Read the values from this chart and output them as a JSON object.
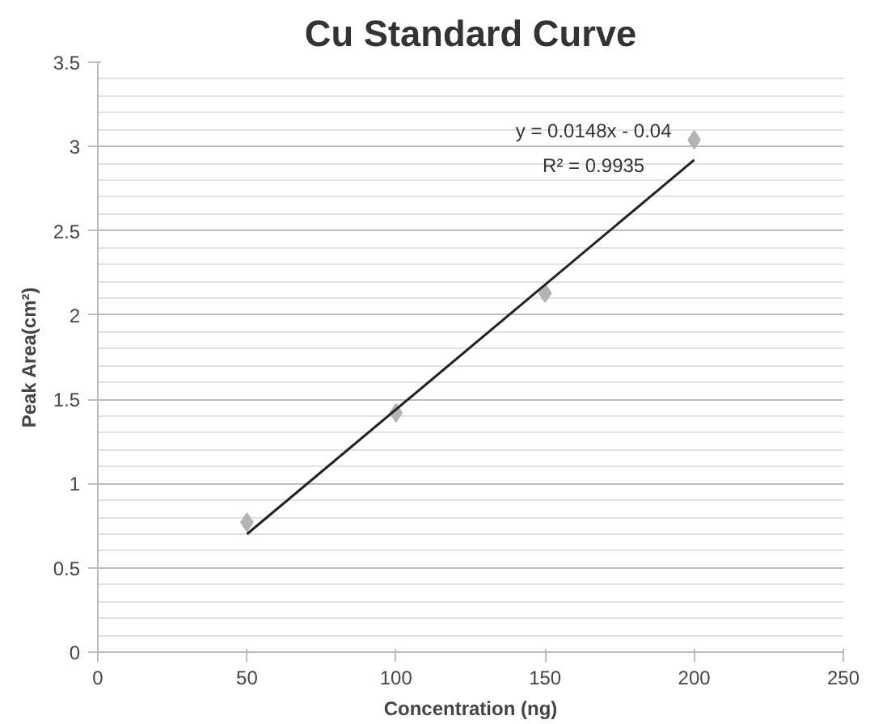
{
  "chart_data": {
    "type": "scatter",
    "title": "Cu Standard Curve",
    "xlabel": "Concentration (ng)",
    "ylabel": "Peak Area(cm²)",
    "x": [
      50,
      100,
      150,
      200
    ],
    "series": [
      {
        "color": "#b4b4b4",
        "marker": "diamond",
        "values": [
          0.77,
          1.42,
          2.13,
          3.04
        ]
      },
      {
        "type": "line",
        "color": "#222222",
        "marker": "none",
        "line_style": "solid",
        "x": [
          50,
          200
        ],
        "values": [
          0.7,
          2.92
        ]
      }
    ],
    "annotations": [
      "y = 0.0148x - 0.04",
      "R² = 0.9935"
    ],
    "xlim": [
      0,
      250
    ],
    "xticks": [
      0,
      50,
      100,
      150,
      200,
      250
    ],
    "ylim": [
      0,
      3.5
    ],
    "yticks": [
      0,
      0.5,
      1,
      1.5,
      2,
      2.5,
      3,
      3.5
    ],
    "grid": "y"
  }
}
